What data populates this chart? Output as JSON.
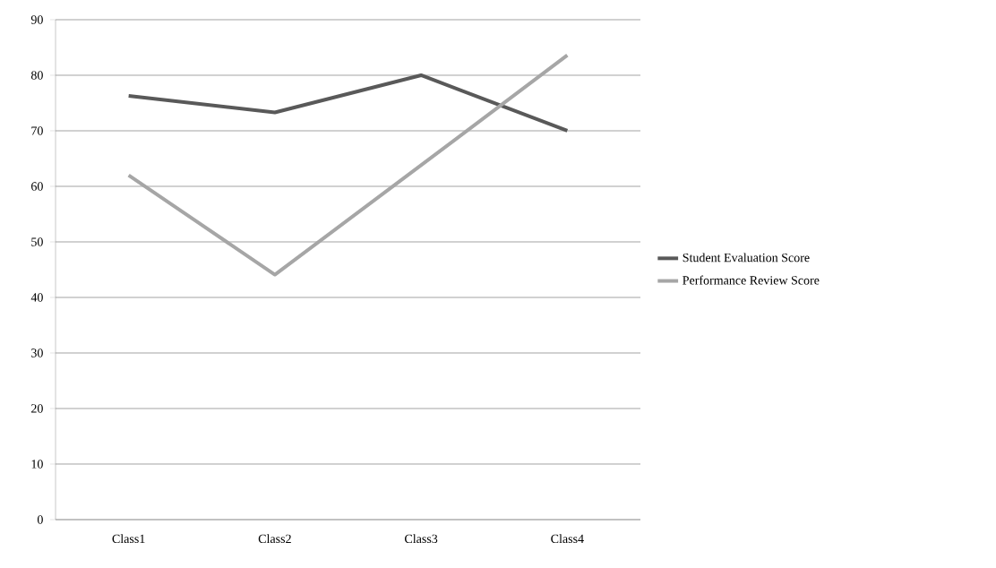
{
  "chart_data": {
    "type": "line",
    "categories": [
      "Class1",
      "Class2",
      "Class3",
      "Class4"
    ],
    "series": [
      {
        "name": "Student Evaluation Score",
        "color": "#595959",
        "values": [
          76.3,
          73.3,
          80,
          70
        ]
      },
      {
        "name": "Performance Review Score",
        "color": "#a6a6a6",
        "values": [
          62,
          44.1,
          63.8,
          83.6
        ]
      }
    ],
    "ylim": [
      0,
      90
    ],
    "yticks": [
      0,
      10,
      20,
      30,
      40,
      50,
      60,
      70,
      80,
      90
    ],
    "grid": "y",
    "legend": "right",
    "marker": "none",
    "line_style": "solid"
  }
}
